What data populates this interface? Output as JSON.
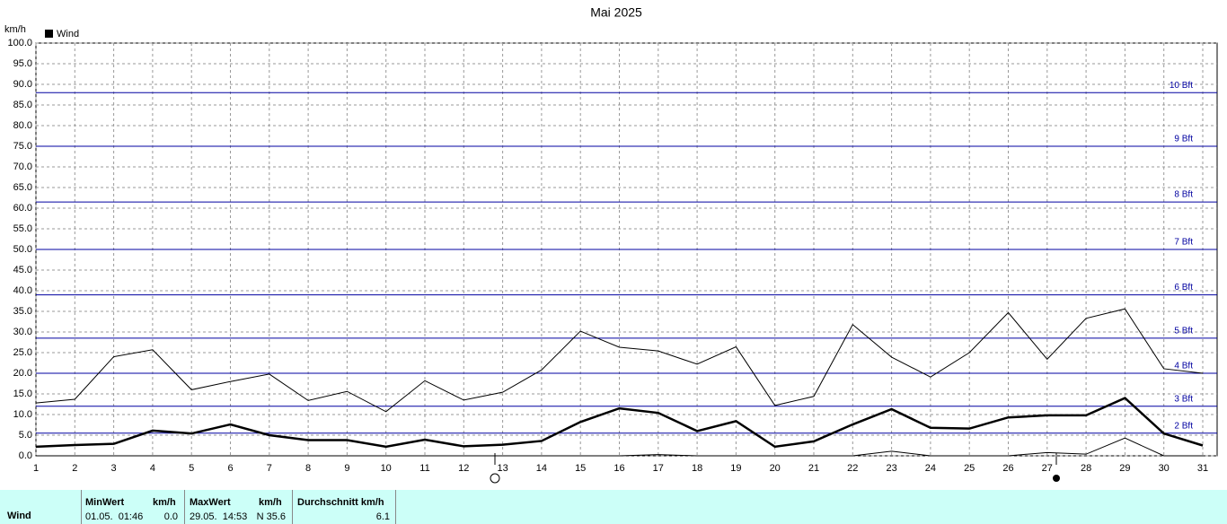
{
  "chart_data": {
    "type": "line",
    "title": "Mai 2025",
    "y_label": "km/h",
    "x": [
      1,
      2,
      3,
      4,
      5,
      6,
      7,
      8,
      9,
      10,
      11,
      12,
      13,
      14,
      15,
      16,
      17,
      18,
      19,
      20,
      21,
      22,
      23,
      24,
      25,
      26,
      27,
      28,
      29,
      30,
      31
    ],
    "xlim": [
      1,
      31
    ],
    "xticks": [
      1,
      2,
      3,
      4,
      5,
      6,
      7,
      8,
      9,
      10,
      11,
      12,
      13,
      14,
      15,
      16,
      17,
      18,
      19,
      20,
      21,
      22,
      23,
      24,
      25,
      26,
      27,
      28,
      29,
      30,
      31
    ],
    "ylim": [
      0,
      100
    ],
    "yticks": [
      {
        "value": 0,
        "label": "0.0"
      },
      {
        "value": 5,
        "label": "5.0"
      },
      {
        "value": 10,
        "label": "10.0"
      },
      {
        "value": 15,
        "label": "15.0"
      },
      {
        "value": 20,
        "label": "20.0"
      },
      {
        "value": 25,
        "label": "25.0"
      },
      {
        "value": 30,
        "label": "30.0"
      },
      {
        "value": 35,
        "label": "35.0"
      },
      {
        "value": 40,
        "label": "40.0"
      },
      {
        "value": 45,
        "label": "45.0"
      },
      {
        "value": 50,
        "label": "50.0"
      },
      {
        "value": 55,
        "label": "55.0"
      },
      {
        "value": 60,
        "label": "60.0"
      },
      {
        "value": 65,
        "label": "65.0"
      },
      {
        "value": 70,
        "label": "70.0"
      },
      {
        "value": 75,
        "label": "75.0"
      },
      {
        "value": 80,
        "label": "80.0"
      },
      {
        "value": 85,
        "label": "85.0"
      },
      {
        "value": 90,
        "label": "90.0"
      },
      {
        "value": 95,
        "label": "95.0"
      },
      {
        "value": 100,
        "label": "100.0"
      }
    ],
    "grid": true,
    "reference_lines": [
      {
        "value": 5.5,
        "label": "2 Bft"
      },
      {
        "value": 12,
        "label": "3 Bft"
      },
      {
        "value": 20,
        "label": "4 Bft"
      },
      {
        "value": 28.5,
        "label": "5 Bft"
      },
      {
        "value": 39,
        "label": "6 Bft"
      },
      {
        "value": 50,
        "label": "7 Bft"
      },
      {
        "value": 61.5,
        "label": "8 Bft"
      },
      {
        "value": 75,
        "label": "9 Bft"
      },
      {
        "value": 88,
        "label": "10 Bft"
      }
    ],
    "reference_color": "#0000a0",
    "series": [
      {
        "name": "Wind",
        "color": "#000000",
        "width": 2.5,
        "values": [
          2.2,
          2.6,
          2.9,
          6.1,
          5.4,
          7.6,
          5,
          3.8,
          3.8,
          2.2,
          3.9,
          2.3,
          2.7,
          3.6,
          8.2,
          11.5,
          10.4,
          6,
          8.4,
          2.2,
          3.5,
          7.6,
          11.3,
          6.8,
          6.6,
          9.3,
          9.8,
          9.8,
          14,
          5.4,
          2.5
        ]
      },
      {
        "color": "#000000",
        "width": 1,
        "values": [
          12.8,
          13.7,
          24,
          25.7,
          16,
          18,
          19.8,
          13.4,
          15.6,
          10.7,
          18.2,
          13.5,
          15.4,
          20.8,
          30.2,
          26.3,
          25.4,
          22.2,
          26.4,
          12.2,
          14.4,
          31.8,
          23.9,
          19.1,
          25,
          34.7,
          23.4,
          33.3,
          35.6,
          21.1,
          20
        ]
      },
      {
        "color": "#000000",
        "width": 1,
        "values": [
          0,
          0,
          0,
          0,
          0,
          0,
          0,
          0,
          0,
          0,
          0,
          0,
          0,
          0,
          0,
          0,
          0.3,
          0,
          0,
          0,
          0,
          0,
          1.1,
          0,
          0,
          0,
          0.8,
          0.4,
          4.3,
          0,
          0
        ]
      }
    ]
  },
  "table": {
    "row_label": "Wind",
    "headers": [
      "MinWert",
      "km/h",
      "MaxWert",
      "km/h",
      "Durchschnitt km/h"
    ],
    "cells": [
      "01.05.  01:46",
      "0.0",
      "29.05.  14:53",
      "N 35.6",
      "6.1"
    ]
  }
}
